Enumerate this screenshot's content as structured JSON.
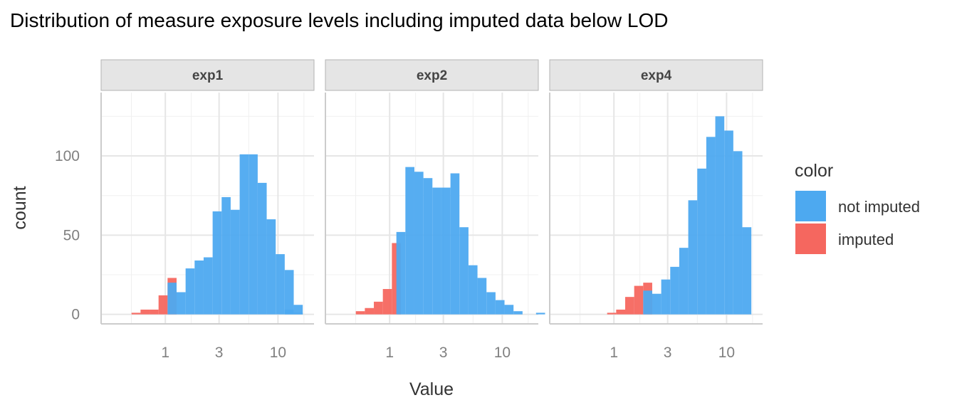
{
  "chart_data": {
    "type": "bar",
    "title": "Distribution of measure exposure levels including imputed data below LOD",
    "xlabel": "Value",
    "ylabel": "count",
    "x_scale": "log10",
    "x_ticks": [
      1,
      3,
      10
    ],
    "x_tick_labels": [
      "1",
      "3",
      "10"
    ],
    "y_ticks": [
      0,
      50,
      100
    ],
    "y_tick_labels": [
      "0",
      "50",
      "100"
    ],
    "ylim": [
      -6,
      140
    ],
    "xlim_log10": [
      -0.57,
      1.32
    ],
    "bin_width_log10": 0.08,
    "grid": true,
    "legend": {
      "title": "color",
      "position": "right",
      "entries": [
        {
          "name": "not imputed",
          "color": "#4DA9F0"
        },
        {
          "name": "imputed",
          "color": "#F5675F"
        }
      ]
    },
    "facets": [
      {
        "label": "exp1",
        "series": [
          {
            "name": "imputed",
            "bins_log10_left": [
              -0.3,
              -0.22,
              -0.14,
              -0.06,
              0.02
            ],
            "values": [
              1,
              3,
              3,
              12,
              23
            ]
          },
          {
            "name": "not imputed",
            "bins_log10_left": [
              0.02,
              0.1,
              0.18,
              0.26,
              0.34,
              0.42,
              0.5,
              0.58,
              0.66,
              0.74,
              0.82,
              0.9,
              0.98,
              1.06,
              1.14
            ],
            "values": [
              20,
              14,
              29,
              34,
              36,
              65,
              74,
              66,
              101,
              101,
              83,
              60,
              38,
              28,
              6
            ]
          },
          {
            "name": "not imputed",
            "bins_log10_left": [
              1.06
            ],
            "values": [
              3
            ]
          },
          {
            "name": "not imputed",
            "bins_log10_left": [
              1.14
            ],
            "values": [
              1
            ]
          }
        ]
      },
      {
        "label": "exp2",
        "series": [
          {
            "name": "imputed",
            "bins_log10_left": [
              -0.3,
              -0.22,
              -0.14,
              -0.06,
              0.02
            ],
            "values": [
              2,
              4,
              8,
              16,
              45
            ]
          },
          {
            "name": "not imputed",
            "bins_log10_left": [
              0.06,
              0.14,
              0.22,
              0.3,
              0.38,
              0.46,
              0.54,
              0.62,
              0.7,
              0.78,
              0.86,
              0.94,
              1.02,
              1.1
            ],
            "values": [
              52,
              93,
              90,
              86,
              80,
              80,
              89,
              55,
              31,
              23,
              14,
              9,
              6,
              2
            ]
          },
          {
            "name": "not imputed",
            "bins_log10_left": [
              1.3
            ],
            "values": [
              1
            ]
          }
        ]
      },
      {
        "label": "exp4",
        "series": [
          {
            "name": "imputed",
            "bins_log10_left": [
              -0.06,
              0.02,
              0.1,
              0.18,
              0.26
            ],
            "values": [
              1,
              3,
              11,
              18,
              20
            ]
          },
          {
            "name": "not imputed",
            "bins_log10_left": [
              0.26,
              0.34,
              0.42,
              0.5,
              0.58,
              0.66,
              0.74,
              0.82,
              0.9,
              0.98,
              1.06,
              1.14
            ],
            "values": [
              15,
              13,
              22,
              30,
              42,
              72,
              92,
              112,
              125,
              116,
              103,
              55
            ],
            "extra": []
          }
        ]
      }
    ]
  }
}
